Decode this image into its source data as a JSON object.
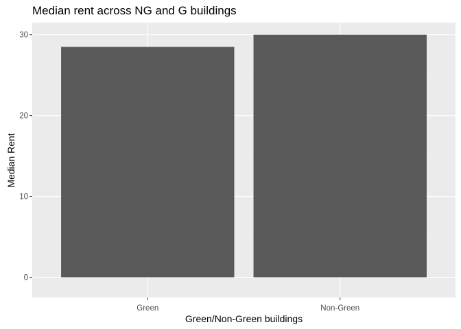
{
  "chart_data": {
    "type": "bar",
    "title": "Median rent across NG and G buildings",
    "xlabel": "Green/Non-Green buildings",
    "ylabel": "Median Rent",
    "categories": [
      "Green",
      "Non-Green"
    ],
    "values": [
      28.5,
      30.0
    ],
    "ylim": [
      -2.5,
      31.5
    ],
    "yticks": [
      0,
      10,
      20,
      30
    ],
    "grid": true,
    "legend": "none",
    "colors": {
      "bar": "#595959",
      "panel": "#ebebeb",
      "grid_major": "#ffffff",
      "grid_minor": "#f5f5f5",
      "tick_text": "#4d4d4d"
    }
  }
}
